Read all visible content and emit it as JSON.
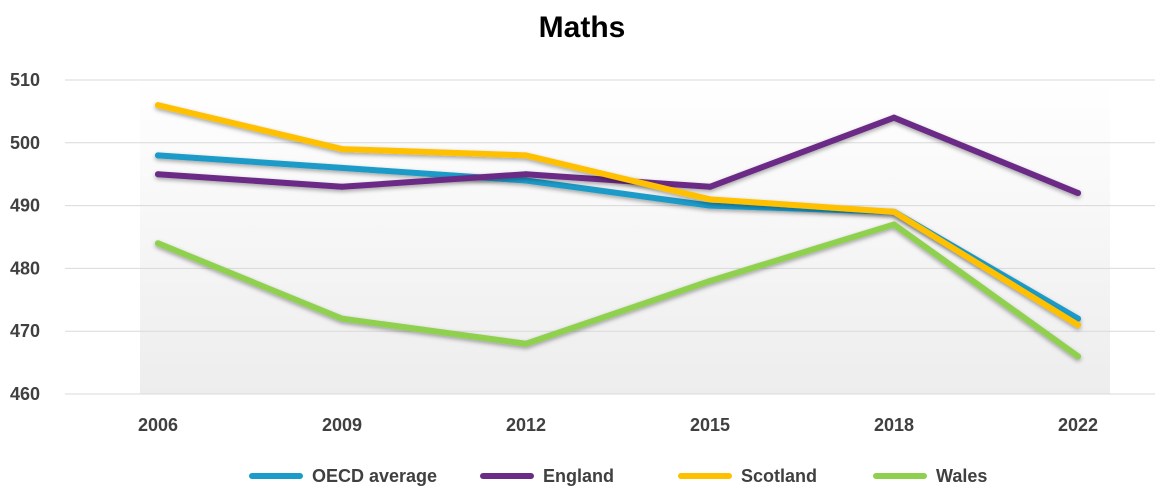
{
  "chart_data": {
    "type": "line",
    "title": "Maths",
    "categories": [
      "2006",
      "2009",
      "2012",
      "2015",
      "2018",
      "2022"
    ],
    "ylim": [
      460,
      510
    ],
    "yticks": [
      460,
      470,
      480,
      490,
      500,
      510
    ],
    "grid": true,
    "legend_position": "bottom",
    "series": [
      {
        "name": "OECD average",
        "color": "#1b9bc9",
        "values": [
          498,
          496,
          494,
          490,
          489,
          472
        ]
      },
      {
        "name": "England",
        "color": "#6b2c85",
        "values": [
          495,
          493,
          495,
          493,
          504,
          492
        ]
      },
      {
        "name": "Scotland",
        "color": "#ffc000",
        "values": [
          506,
          499,
          498,
          491,
          489,
          471
        ]
      },
      {
        "name": "Wales",
        "color": "#8fd14f",
        "values": [
          484,
          472,
          468,
          478,
          487,
          466
        ]
      }
    ]
  }
}
